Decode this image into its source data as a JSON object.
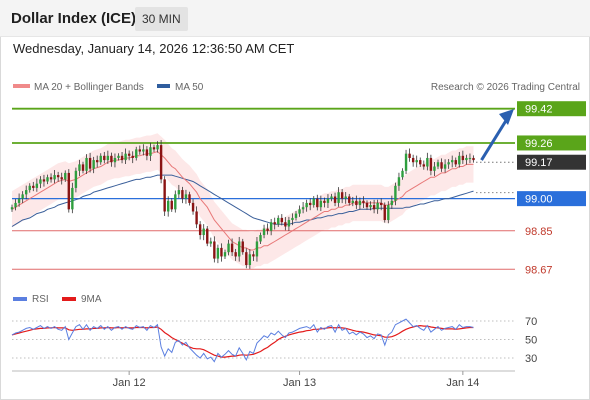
{
  "header": {
    "title": "Dollar Index (ICE)",
    "timeframe": "30 MIN",
    "datetime": "Wednesday, January 14, 2026 12:36:50 AM CET"
  },
  "legend": {
    "main": [
      {
        "label": "MA 20 + Bollinger Bands",
        "color": "#f08a8a"
      },
      {
        "label": "MA 50",
        "color": "#2f5d9e"
      }
    ],
    "copyright": "Research © 2026 Trading Central",
    "rsi": [
      {
        "label": "RSI",
        "color": "#5b7fe0"
      },
      {
        "label": "9MA",
        "color": "#e31b1b"
      }
    ]
  },
  "chart_data": {
    "type": "candlestick",
    "ylim": [
      98.62,
      99.47
    ],
    "x_ticks": [
      {
        "label": "Jan 12",
        "bar": 33
      },
      {
        "label": "Jan 13",
        "bar": 81
      },
      {
        "label": "Jan 14",
        "bar": 127
      }
    ],
    "levels": [
      {
        "value": 99.42,
        "label": "99.42",
        "color": "#5aa51a",
        "kind": "resistance"
      },
      {
        "value": 99.26,
        "label": "99.26",
        "color": "#5aa51a",
        "kind": "resistance"
      },
      {
        "value": 99.17,
        "label": "99.17",
        "color": "#333333",
        "kind": "last"
      },
      {
        "value": 99.0,
        "label": "99.00",
        "color": "#2a6fdb",
        "kind": "pivot"
      },
      {
        "value": 98.85,
        "label": "98.85",
        "color": "#e06a6a",
        "kind": "support"
      },
      {
        "value": 98.67,
        "label": "98.67",
        "color": "#e06a6a",
        "kind": "support"
      }
    ],
    "forecast": {
      "from_bar": 130,
      "from_value": 99.18,
      "to_value": 99.4,
      "color": "#2a5fb0"
    },
    "candle_colors": {
      "up": "#2e9e3e",
      "down": "#8a1414"
    },
    "closes": [
      98.96,
      98.98,
      99.0,
      99.02,
      99.04,
      99.06,
      99.05,
      99.07,
      99.09,
      99.08,
      99.1,
      99.09,
      99.11,
      99.1,
      99.09,
      99.12,
      98.95,
      99.05,
      99.13,
      99.16,
      99.13,
      99.19,
      99.14,
      99.18,
      99.17,
      99.2,
      99.18,
      99.2,
      99.17,
      99.19,
      99.2,
      99.18,
      99.21,
      99.2,
      99.19,
      99.23,
      99.22,
      99.23,
      99.2,
      99.24,
      99.23,
      99.25,
      99.09,
      98.94,
      98.99,
      98.95,
      99.02,
      99.04,
      99.0,
      99.02,
      98.98,
      98.94,
      98.88,
      98.83,
      98.86,
      98.79,
      98.8,
      98.72,
      98.77,
      98.73,
      98.75,
      98.79,
      98.75,
      98.73,
      98.8,
      98.75,
      98.69,
      98.74,
      98.73,
      98.8,
      98.83,
      98.86,
      98.85,
      98.89,
      98.88,
      98.91,
      98.89,
      98.87,
      98.9,
      98.91,
      98.93,
      98.95,
      98.96,
      98.98,
      98.97,
      99.0,
      98.96,
      98.99,
      98.98,
      99.0,
      99.01,
      98.98,
      99.03,
      99.0,
      99.01,
      98.98,
      98.99,
      98.97,
      98.99,
      98.98,
      98.96,
      98.97,
      98.95,
      98.98,
      98.97,
      98.9,
      98.97,
      98.99,
      99.06,
      99.1,
      99.13,
      99.21,
      99.19,
      99.17,
      99.18,
      99.16,
      99.15,
      99.19,
      99.13,
      99.15,
      99.17,
      99.14,
      99.16,
      99.17,
      99.18,
      99.16,
      99.2,
      99.18,
      99.19,
      99.19,
      99.18
    ],
    "ma20": [
      98.95,
      98.96,
      98.97,
      98.98,
      98.99,
      99.0,
      99.01,
      99.02,
      99.03,
      99.04,
      99.05,
      99.06,
      99.07,
      99.08,
      99.085,
      99.09,
      99.08,
      99.085,
      99.09,
      99.1,
      99.11,
      99.12,
      99.13,
      99.14,
      99.145,
      99.15,
      99.16,
      99.17,
      99.175,
      99.18,
      99.18,
      99.185,
      99.19,
      99.19,
      99.195,
      99.2,
      99.2,
      99.205,
      99.21,
      99.21,
      99.215,
      99.22,
      99.205,
      99.19,
      99.17,
      99.15,
      99.14,
      99.12,
      99.1,
      99.085,
      99.07,
      99.05,
      99.03,
      99.0,
      98.98,
      98.96,
      98.93,
      98.9,
      98.88,
      98.86,
      98.84,
      98.82,
      98.8,
      98.79,
      98.78,
      98.77,
      98.77,
      98.76,
      98.76,
      98.77,
      98.77,
      98.78,
      98.78,
      98.79,
      98.8,
      98.81,
      98.82,
      98.83,
      98.84,
      98.85,
      98.86,
      98.87,
      98.88,
      98.89,
      98.9,
      98.91,
      98.92,
      98.93,
      98.94,
      98.94,
      98.95,
      98.95,
      98.96,
      98.96,
      98.97,
      98.97,
      98.98,
      98.98,
      98.98,
      98.98,
      98.98,
      98.98,
      98.98,
      98.98,
      98.98,
      98.97,
      98.97,
      98.98,
      98.99,
      99.0,
      99.01,
      99.03,
      99.04,
      99.05,
      99.06,
      99.07,
      99.08,
      99.09,
      99.1,
      99.1,
      99.11,
      99.12,
      99.12,
      99.13,
      99.14,
      99.14,
      99.15,
      99.15,
      99.16,
      99.16,
      99.16
    ],
    "ma50": [
      98.87,
      98.88,
      98.89,
      98.9,
      98.905,
      98.91,
      98.92,
      98.93,
      98.935,
      98.94,
      98.95,
      98.955,
      98.96,
      98.97,
      98.975,
      98.98,
      98.985,
      98.99,
      98.995,
      99.0,
      99.01,
      99.015,
      99.02,
      99.03,
      99.035,
      99.04,
      99.045,
      99.05,
      99.055,
      99.06,
      99.065,
      99.07,
      99.075,
      99.08,
      99.085,
      99.09,
      99.09,
      99.095,
      99.1,
      99.1,
      99.105,
      99.11,
      99.11,
      99.11,
      99.11,
      99.11,
      99.105,
      99.1,
      99.095,
      99.09,
      99.085,
      99.08,
      99.07,
      99.06,
      99.05,
      99.04,
      99.03,
      99.02,
      99.01,
      99.0,
      98.99,
      98.98,
      98.97,
      98.96,
      98.95,
      98.94,
      98.93,
      98.92,
      98.91,
      98.905,
      98.9,
      98.895,
      98.89,
      98.885,
      98.88,
      98.88,
      98.88,
      98.88,
      98.88,
      98.885,
      98.89,
      98.89,
      98.895,
      98.9,
      98.9,
      98.905,
      98.91,
      98.91,
      98.915,
      98.92,
      98.92,
      98.925,
      98.93,
      98.93,
      98.935,
      98.94,
      98.94,
      98.945,
      98.95,
      98.95,
      98.95,
      98.95,
      98.955,
      98.955,
      98.955,
      98.955,
      98.955,
      98.955,
      98.955,
      98.955,
      98.955,
      98.96,
      98.96,
      98.965,
      98.97,
      98.975,
      98.975,
      98.98,
      98.985,
      98.99,
      98.99,
      98.995,
      99.0,
      99.0,
      99.005,
      99.01,
      99.015,
      99.02,
      99.025,
      99.03,
      99.035
    ],
    "band_width": 0.085,
    "rsi": {
      "ticks": [
        70,
        50,
        30
      ],
      "ylim": [
        20,
        80
      ],
      "rsi_values": [
        55,
        57,
        58,
        60,
        62,
        63,
        61,
        63,
        65,
        62,
        64,
        62,
        64,
        61,
        60,
        64,
        50,
        57,
        64,
        66,
        61,
        66,
        60,
        64,
        62,
        65,
        61,
        64,
        60,
        63,
        64,
        61,
        64,
        62,
        61,
        65,
        63,
        64,
        60,
        65,
        63,
        66,
        42,
        32,
        40,
        36,
        47,
        49,
        44,
        47,
        41,
        37,
        33,
        30,
        35,
        29,
        31,
        26,
        35,
        31,
        34,
        38,
        34,
        32,
        41,
        35,
        28,
        37,
        35,
        46,
        50,
        54,
        52,
        57,
        55,
        59,
        55,
        52,
        57,
        58,
        60,
        62,
        63,
        64,
        62,
        66,
        58,
        63,
        61,
        64,
        65,
        58,
        66,
        60,
        62,
        56,
        58,
        55,
        58,
        56,
        52,
        54,
        51,
        56,
        55,
        44,
        55,
        58,
        66,
        68,
        70,
        72,
        68,
        64,
        65,
        62,
        60,
        65,
        58,
        61,
        64,
        60,
        62,
        63,
        64,
        61,
        66,
        63,
        64,
        64,
        63
      ],
      "ma9_values": [
        55,
        56,
        57,
        58,
        59,
        60,
        61,
        61.5,
        62,
        62,
        62.5,
        62.5,
        63,
        62.5,
        62.5,
        62.5,
        60.5,
        60,
        60.5,
        61,
        61,
        61.5,
        61.5,
        62,
        62,
        62.5,
        62.5,
        63,
        62.5,
        62.5,
        63,
        62.5,
        63,
        62.5,
        62.5,
        63,
        63,
        63,
        62.5,
        63,
        63,
        63.5,
        61,
        57.5,
        55,
        52,
        50,
        48,
        46,
        44,
        42,
        40.5,
        40,
        40,
        39,
        37,
        35,
        33,
        32,
        31,
        31,
        31.5,
        32,
        32,
        33,
        33.5,
        33,
        33.5,
        34,
        35.5,
        37,
        39.5,
        41.5,
        44.5,
        47,
        50,
        52,
        53.5,
        55,
        56,
        57,
        58,
        58.5,
        59.5,
        60,
        61,
        61,
        61.5,
        62,
        62.5,
        63,
        62.5,
        63,
        62.5,
        62,
        61,
        60,
        59,
        58.5,
        58,
        57,
        56,
        55,
        54.5,
        54,
        52.5,
        52.5,
        53,
        54.5,
        56.5,
        59,
        61,
        62.5,
        63.5,
        64.5,
        65,
        64.5,
        64.5,
        63.5,
        63,
        62.5,
        62,
        61.5,
        61.5,
        61.5,
        61,
        61.5,
        62,
        62.5,
        63,
        63
      ]
    }
  }
}
